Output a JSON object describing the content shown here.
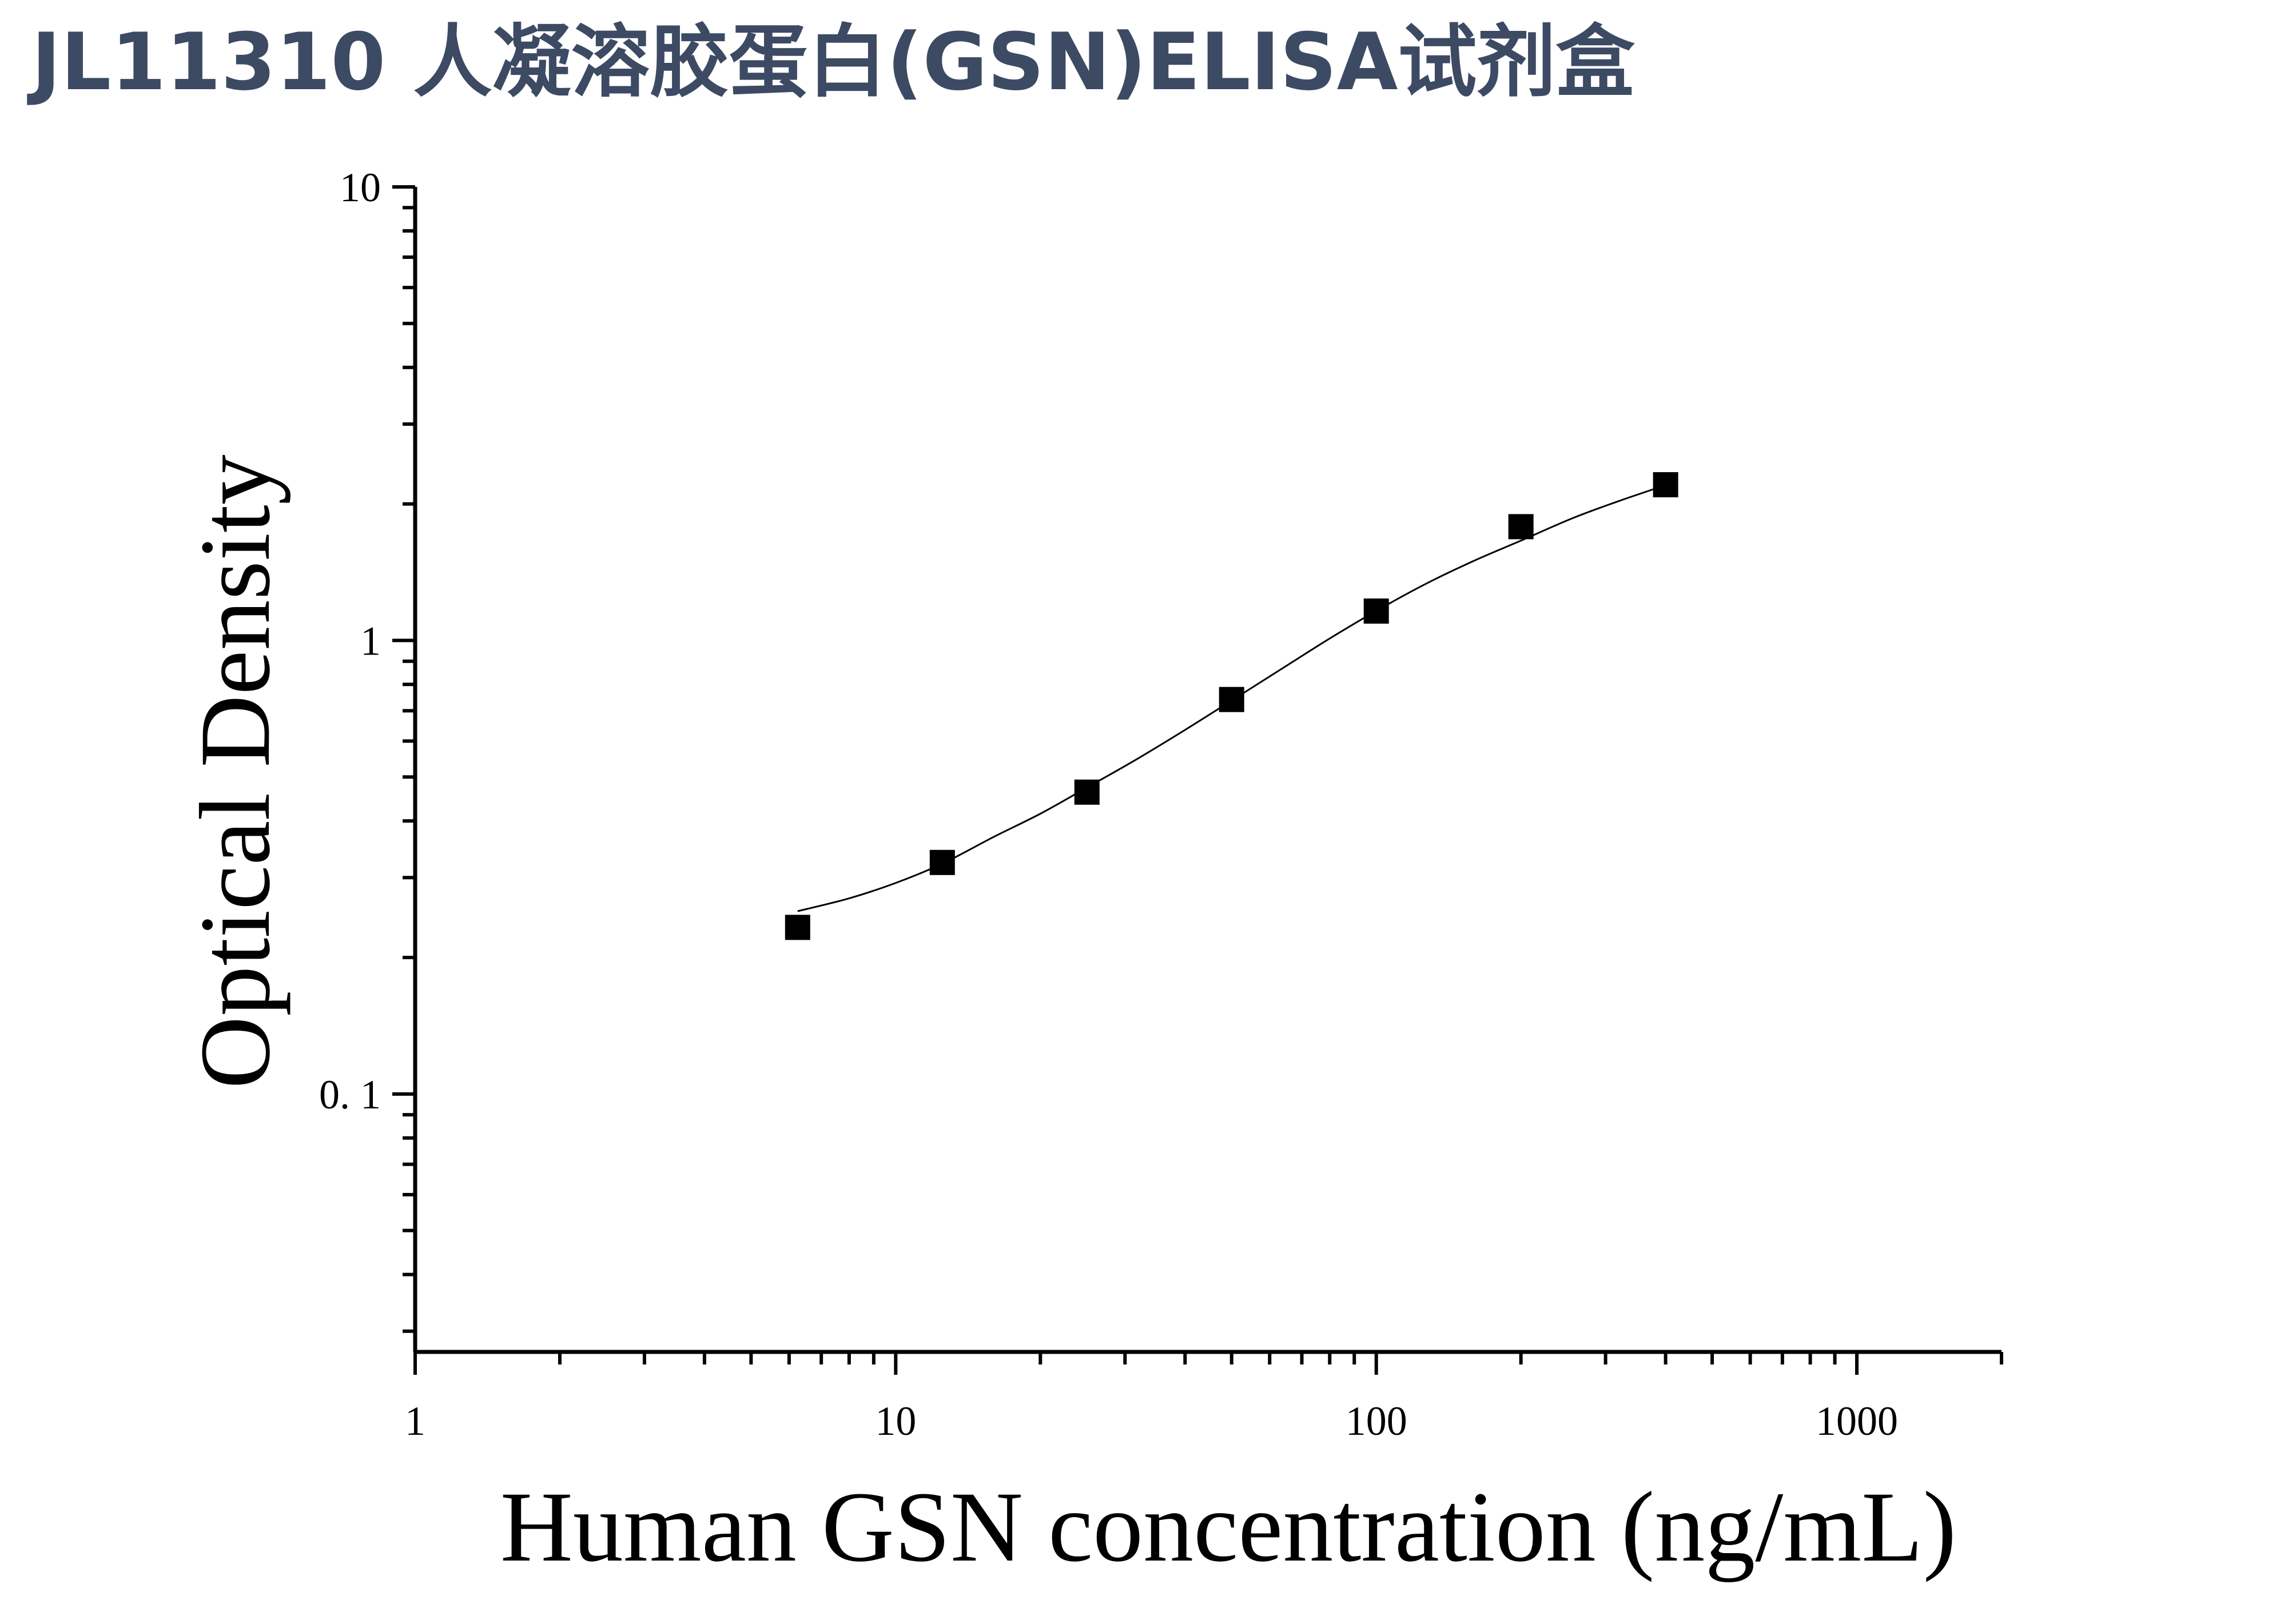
{
  "page": {
    "title": "JL11310 人凝溶胶蛋白(GSN)ELISA试剂盒"
  },
  "chart_data": {
    "type": "scatter",
    "title": "JL11310 人凝溶胶蛋白(GSN)ELISA试剂盒",
    "xlabel": "Human GSN concentration (ng/mL)",
    "ylabel": "Optical Density",
    "x_scale": "log",
    "y_scale": "log",
    "xlim": [
      1,
      2000
    ],
    "ylim": [
      0.027,
      10
    ],
    "x_ticks": [
      {
        "value": 1,
        "label": "1"
      },
      {
        "value": 10,
        "label": "10"
      },
      {
        "value": 100,
        "label": "100"
      },
      {
        "value": 1000,
        "label": "1000"
      }
    ],
    "y_ticks": [
      {
        "value": 0.1,
        "label": "0. 1"
      },
      {
        "value": 1,
        "label": "1"
      },
      {
        "value": 10,
        "label": "10"
      }
    ],
    "grid": false,
    "legend": "none",
    "series": [
      {
        "marker": "square",
        "color": "#000000",
        "x": [
          6.25,
          12.5,
          25,
          50,
          100,
          200,
          400
        ],
        "y": [
          0.233,
          0.324,
          0.463,
          0.741,
          1.161,
          1.782,
          2.205
        ]
      }
    ],
    "fit_curve": {
      "color": "#000000",
      "x": [
        6.25,
        8,
        10,
        12.5,
        16,
        20,
        25,
        32,
        40,
        50,
        64,
        80,
        100,
        128,
        160,
        200,
        256,
        320,
        400
      ],
      "y": [
        0.253,
        0.27,
        0.292,
        0.322,
        0.369,
        0.415,
        0.474,
        0.55,
        0.635,
        0.737,
        0.87,
        1.01,
        1.162,
        1.34,
        1.5,
        1.66,
        1.86,
        2.03,
        2.2
      ]
    }
  }
}
